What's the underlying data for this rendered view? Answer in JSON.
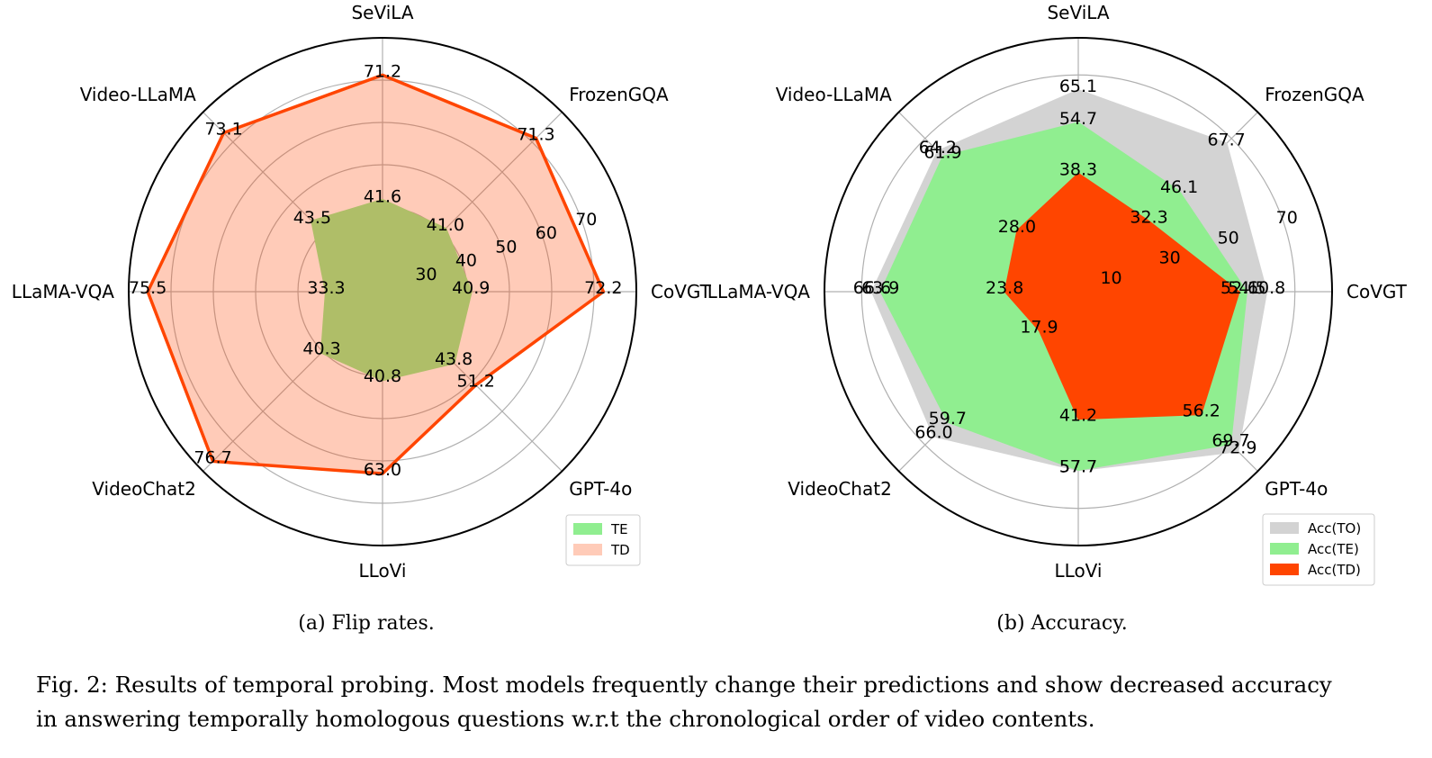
{
  "caption": {
    "line1": "Fig. 2: Results of temporal probing. Most models frequently change their predictions and show decreased accuracy",
    "line2": "in answering temporally homologous questions w.r.t the chronological order of video contents."
  },
  "chart_data": [
    {
      "type": "radar",
      "subcaption": "(a) Flip rates.",
      "axes": [
        "SeViLA",
        "FrozenGQA",
        "CoVGT",
        "GPT-4o",
        "LLoVi",
        "VideoChat2",
        "LLaMA-VQA",
        "Video-LLaMA"
      ],
      "rticks": [
        30,
        40,
        50,
        60,
        70
      ],
      "rlim": [
        20,
        80
      ],
      "grid": true,
      "legend_position": "lower-right",
      "series": [
        {
          "name": "TE",
          "values": [
            41.6,
            41.0,
            40.9,
            43.8,
            40.8,
            40.3,
            33.3,
            43.5
          ],
          "fill": "#90ee90",
          "line": "#90ee90",
          "fill_opacity": 1.0,
          "line_width": 3
        },
        {
          "name": "TD",
          "values": [
            71.2,
            71.3,
            72.2,
            51.2,
            63.0,
            76.7,
            75.5,
            73.1
          ],
          "fill": "#ff4500",
          "line": "#ff4500",
          "fill_opacity": 0.28,
          "line_width": 3.5
        }
      ]
    },
    {
      "type": "radar",
      "subcaption": "(b) Accuracy.",
      "axes": [
        "SeViLA",
        "FrozenGQA",
        "CoVGT",
        "GPT-4o",
        "LLoVi",
        "VideoChat2",
        "LLaMA-VQA",
        "Video-LLaMA"
      ],
      "rticks": [
        10,
        30,
        50,
        70
      ],
      "rlim": [
        0,
        82
      ],
      "grid": true,
      "legend_position": "lower-right",
      "series": [
        {
          "name": "Acc(TO)",
          "values": [
            65.1,
            67.7,
            60.8,
            72.9,
            57.7,
            66.0,
            66.6,
            64.2
          ],
          "fill": "#d3d3d3",
          "line": "#d3d3d3",
          "fill_opacity": 1.0,
          "line_width": 2
        },
        {
          "name": "Acc(TE)",
          "values": [
            54.7,
            46.1,
            54.5,
            69.7,
            57.7,
            59.7,
            63.9,
            61.9
          ],
          "fill": "#90ee90",
          "line": "#90ee90",
          "fill_opacity": 1.0,
          "line_width": 1
        },
        {
          "name": "Acc(TD)",
          "values": [
            38.3,
            32.3,
            52.1,
            56.2,
            41.2,
            17.9,
            23.8,
            28.0
          ],
          "fill": "#ff4500",
          "line": "#ff4500",
          "fill_opacity": 1.0,
          "line_width": 1
        }
      ]
    }
  ]
}
